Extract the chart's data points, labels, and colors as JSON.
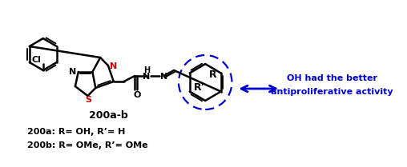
{
  "background": "#ffffff",
  "black": "#000000",
  "red": "#cc0000",
  "blue": "#0000cc",
  "label_200ab": "200a-b",
  "label_200a": "200a: R= OH, R’= H",
  "label_200b": "200b: R= OMe, R’= OMe",
  "annotation_line1": "OH had the better",
  "annotation_line2": "antiproliferative activity",
  "figsize": [
    5.08,
    2.09
  ],
  "dpi": 100
}
